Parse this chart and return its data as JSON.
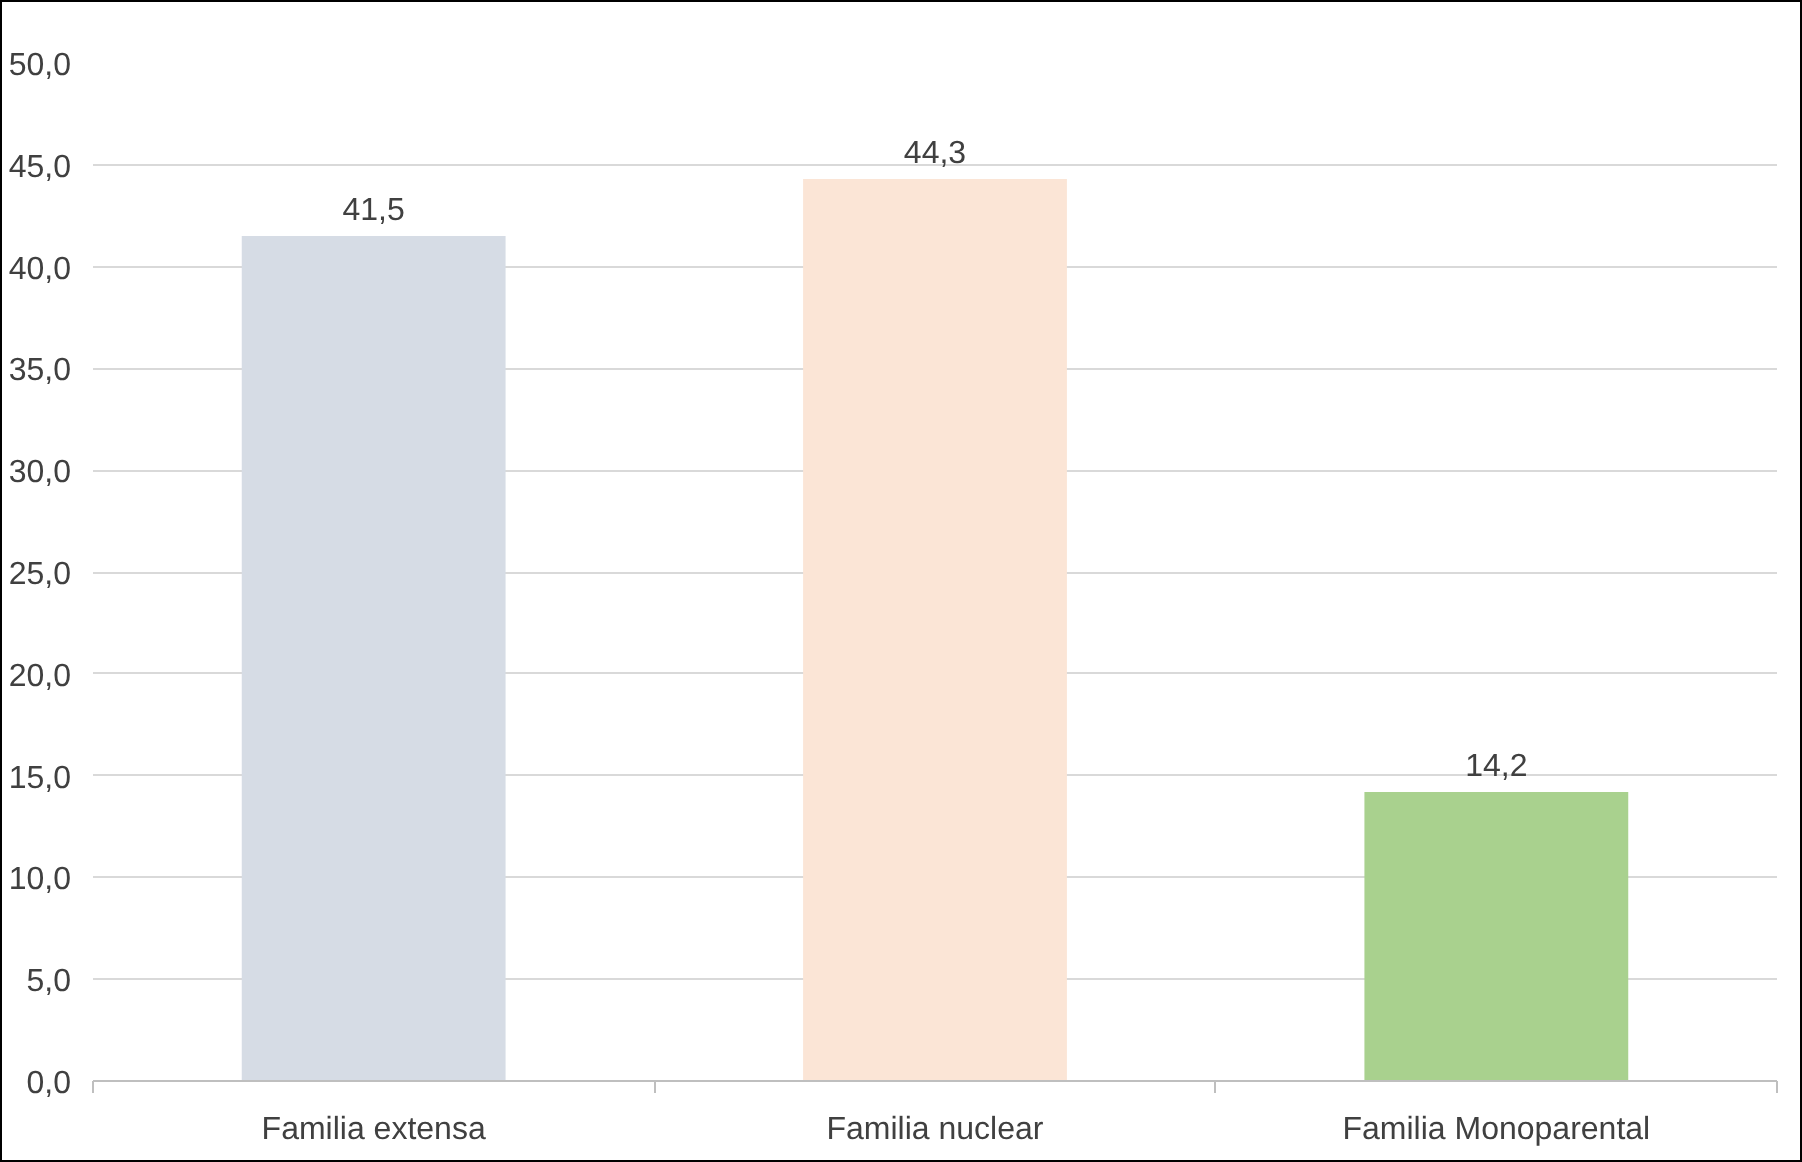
{
  "chart_data": {
    "type": "bar",
    "categories": [
      "Familia extensa",
      "Familia nuclear",
      "Familia Monoparental"
    ],
    "values": [
      41.5,
      44.3,
      14.2
    ],
    "colors": [
      "#d6dce5",
      "#fbe5d6",
      "#a9d18e"
    ],
    "value_labels": [
      "41,5",
      "44,3",
      "14,2"
    ],
    "ylim": [
      0,
      50
    ],
    "yticks": [
      {
        "value": 0,
        "label": "0,0"
      },
      {
        "value": 5,
        "label": "5,0"
      },
      {
        "value": 10,
        "label": "10,0"
      },
      {
        "value": 15,
        "label": "15,0"
      },
      {
        "value": 20,
        "label": "20,0"
      },
      {
        "value": 25,
        "label": "25,0"
      },
      {
        "value": 30,
        "label": "30,0"
      },
      {
        "value": 35,
        "label": "35,0"
      },
      {
        "value": 40,
        "label": "40,0"
      },
      {
        "value": 45,
        "label": "45,0"
      },
      {
        "value": 50,
        "label": "50,0"
      }
    ],
    "grid": "y"
  }
}
